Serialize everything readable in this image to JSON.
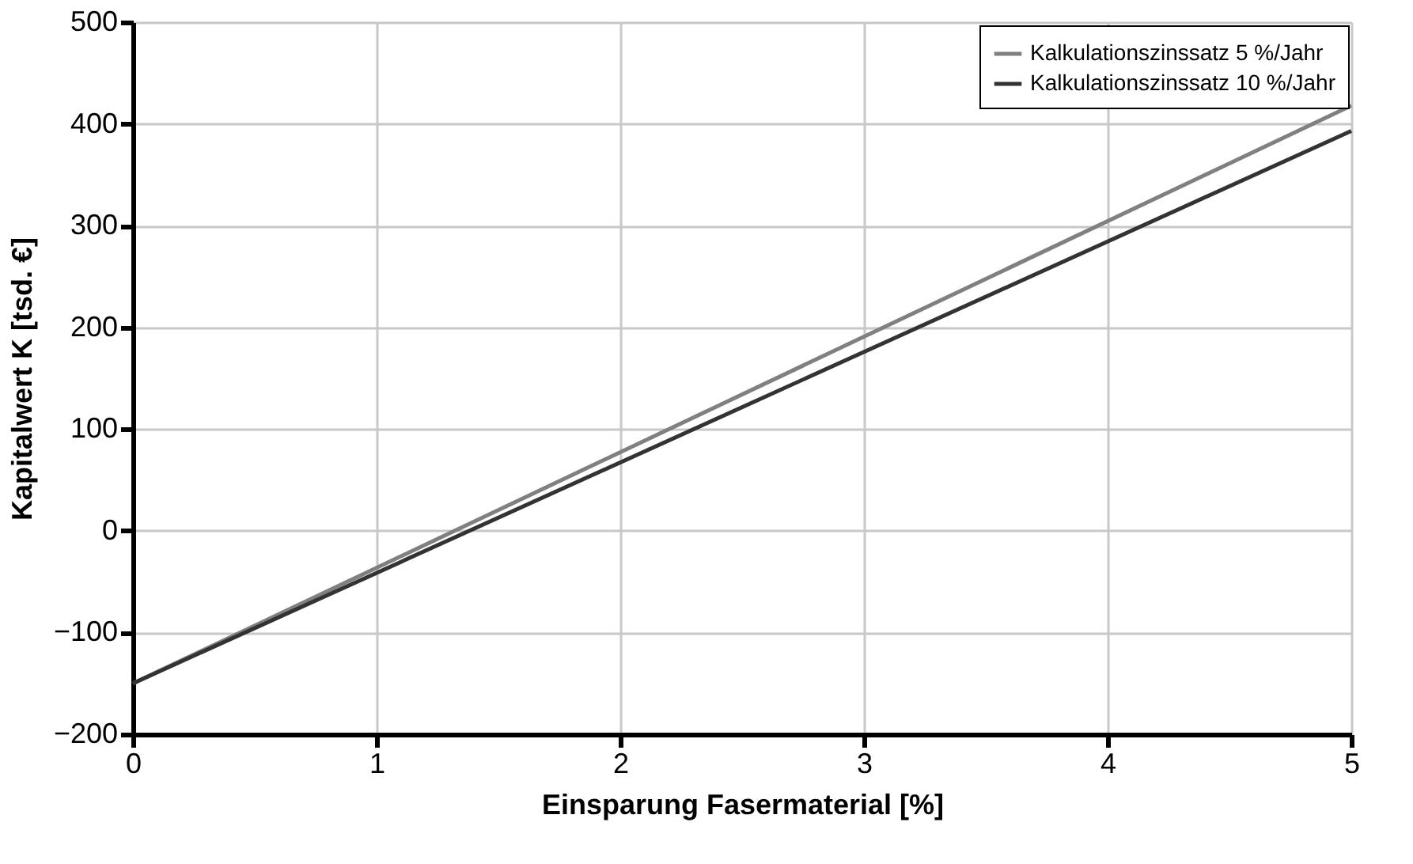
{
  "chart_data": {
    "type": "line",
    "xlabel": "Einsparung Fasermaterial [%]",
    "ylabel": "Kapitalwert K [tsd. €]",
    "x": [
      0,
      5
    ],
    "series": [
      {
        "name": "Kalkulationszinssatz 5 %/Jahr",
        "color": "#808080",
        "values": [
          -150,
          418
        ]
      },
      {
        "name": "Kalkulationszinssatz 10 %/Jahr",
        "color": "#333333",
        "values": [
          -150,
          393
        ]
      }
    ],
    "xlim": [
      0,
      5
    ],
    "xticks": [
      0,
      1,
      2,
      3,
      4,
      5
    ],
    "ylim": [
      -200,
      500
    ],
    "yticks": [
      {
        "value": -200,
        "label": "−200"
      },
      {
        "value": -100,
        "label": "−100"
      },
      0,
      100,
      200,
      300,
      400,
      500
    ],
    "grid": true,
    "legend": "top right",
    "marker": "none",
    "line_style": "solid"
  }
}
